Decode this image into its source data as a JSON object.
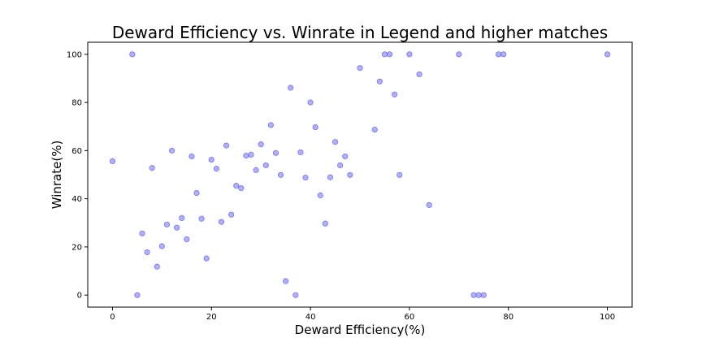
{
  "chart_data": {
    "type": "scatter",
    "title": "Deward Efficiency vs. Winrate in Legend and higher matches",
    "xlabel": "Deward Efficiency(%)",
    "ylabel": "Winrate(%)",
    "xlim": [
      -5,
      105
    ],
    "ylim": [
      -5,
      105
    ],
    "xticks": [
      0,
      20,
      40,
      60,
      80,
      100
    ],
    "yticks": [
      0,
      20,
      40,
      60,
      80,
      100
    ],
    "xtick_labels": [
      "0",
      "20",
      "40",
      "60",
      "80",
      "100"
    ],
    "ytick_labels": [
      "0",
      "20",
      "40",
      "60",
      "80",
      "100"
    ],
    "grid": false,
    "marker_color": "#7070ff",
    "marker_edge_color": "#5050dd",
    "points": [
      [
        0,
        55.6
      ],
      [
        4,
        100
      ],
      [
        5,
        0
      ],
      [
        6,
        25.6
      ],
      [
        7,
        17.8
      ],
      [
        8,
        52.8
      ],
      [
        9,
        11.8
      ],
      [
        10,
        20.3
      ],
      [
        11,
        29.3
      ],
      [
        12,
        60
      ],
      [
        13,
        28
      ],
      [
        14,
        32
      ],
      [
        15,
        23.2
      ],
      [
        16,
        57.6
      ],
      [
        17,
        42.4
      ],
      [
        18,
        31.7
      ],
      [
        19,
        15.2
      ],
      [
        20,
        56.2
      ],
      [
        21,
        52.5
      ],
      [
        22,
        30.4
      ],
      [
        23,
        62.1
      ],
      [
        24,
        33.4
      ],
      [
        25,
        45.4
      ],
      [
        26,
        44.4
      ],
      [
        27,
        57.9
      ],
      [
        28,
        58.3
      ],
      [
        29,
        51.9
      ],
      [
        30,
        62.6
      ],
      [
        31,
        53.9
      ],
      [
        32,
        70.6
      ],
      [
        33,
        59
      ],
      [
        34,
        49.9
      ],
      [
        35,
        5.8
      ],
      [
        36,
        86.1
      ],
      [
        37,
        0
      ],
      [
        38,
        59.3
      ],
      [
        39,
        48.8
      ],
      [
        40,
        80
      ],
      [
        41,
        69.7
      ],
      [
        42,
        41.4
      ],
      [
        43,
        29.7
      ],
      [
        44,
        48.9
      ],
      [
        45,
        63.6
      ],
      [
        46,
        53.9
      ],
      [
        47,
        57.6
      ],
      [
        48,
        49.9
      ],
      [
        50,
        94.3
      ],
      [
        53,
        68.7
      ],
      [
        54,
        88.7
      ],
      [
        55,
        100
      ],
      [
        56,
        100
      ],
      [
        57,
        83.3
      ],
      [
        58,
        49.9
      ],
      [
        60,
        100
      ],
      [
        62,
        91.7
      ],
      [
        64,
        37.4
      ],
      [
        70,
        100
      ],
      [
        73,
        0
      ],
      [
        74,
        0
      ],
      [
        75,
        0
      ],
      [
        78,
        100
      ],
      [
        79,
        100
      ],
      [
        100,
        100
      ]
    ]
  }
}
